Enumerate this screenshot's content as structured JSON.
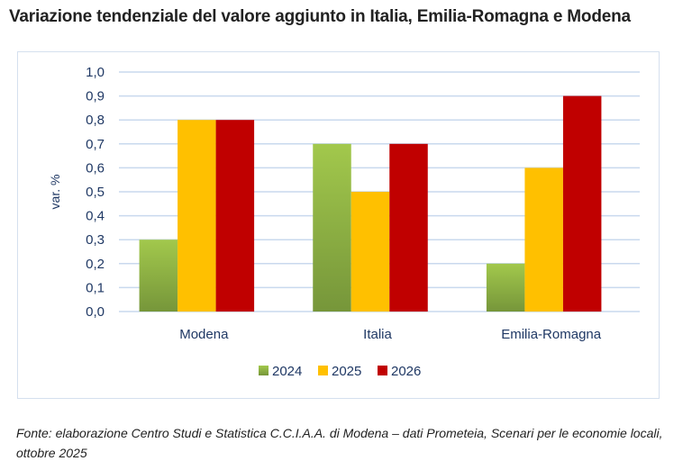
{
  "title": "Variazione tendenziale del valore aggiunto in Italia, Emilia-Romagna e Modena",
  "chart_data": {
    "type": "bar",
    "categories": [
      "Modena",
      "Italia",
      "Emilia-Romagna"
    ],
    "series": [
      {
        "name": "2024",
        "values": [
          0.3,
          0.7,
          0.2
        ],
        "color": "#8db33e"
      },
      {
        "name": "2025",
        "values": [
          0.8,
          0.5,
          0.6
        ],
        "color": "#ffc000"
      },
      {
        "name": "2026",
        "values": [
          0.8,
          0.7,
          0.9
        ],
        "color": "#c00000"
      }
    ],
    "ylabel": "var. %",
    "ylim": [
      0,
      1.0
    ],
    "yticks": [
      "0,0",
      "0,1",
      "0,2",
      "0,3",
      "0,4",
      "0,5",
      "0,6",
      "0,7",
      "0,8",
      "0,9",
      "1,0"
    ],
    "grid": true,
    "legend": "bottom"
  },
  "source": "Fonte: elaborazione Centro Studi e Statistica C.C.I.A.A. di Modena – dati Prometeia, Scenari per le economie locali, ottobre 2025"
}
